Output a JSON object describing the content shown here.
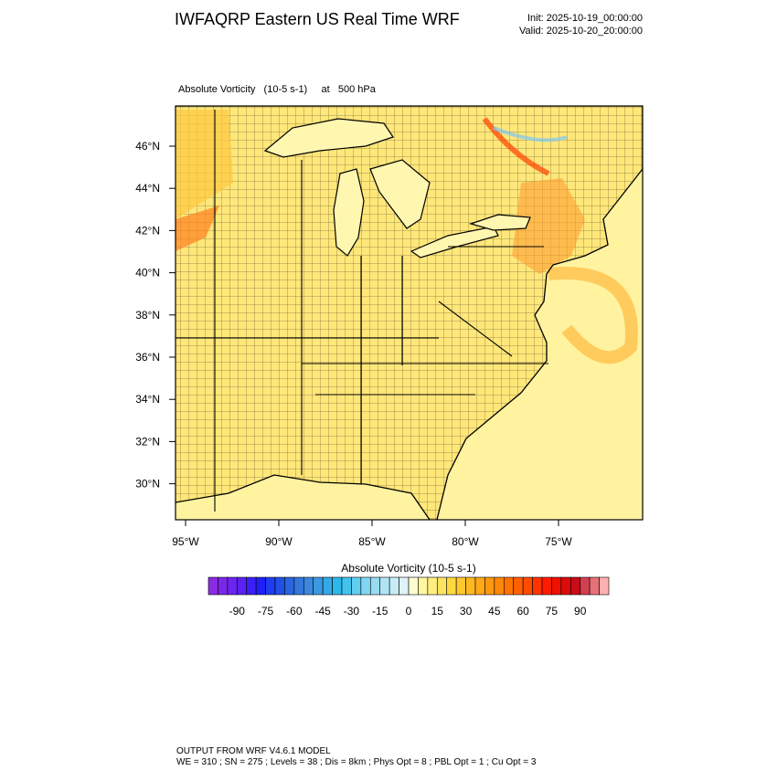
{
  "header": {
    "title": "IWFAQRP Eastern US Real Time WRF",
    "init": "Init: 2025-10-19_00:00:00",
    "valid": "Valid: 2025-10-20_20:00:00"
  },
  "plot": {
    "field_label": "Absolute Vorticity   (10-5 s-1)     at   500 hPa",
    "lat_labels": [
      "46°N",
      "44°N",
      "42°N",
      "40°N",
      "38°N",
      "36°N",
      "34°N",
      "32°N",
      "30°N"
    ],
    "lon_labels": [
      "95°W",
      "90°W",
      "85°W",
      "80°W",
      "75°W"
    ]
  },
  "colorbar": {
    "title": "Absolute Vorticity  (10-5 s-1)",
    "labels": [
      -90,
      -75,
      -60,
      -45,
      -30,
      -15,
      0,
      15,
      30,
      45,
      60,
      75,
      90
    ],
    "colors": [
      "#8a2be2",
      "#7a28e8",
      "#6a25ee",
      "#5a22f2",
      "#3a1ff6",
      "#1f1ff8",
      "#1f3cf0",
      "#2050e6",
      "#2a64e0",
      "#3478dc",
      "#3c88dc",
      "#3c98e0",
      "#34a8e8",
      "#2cb8ec",
      "#40c4ee",
      "#60cef0",
      "#80d6f2",
      "#98dcf2",
      "#b0e4f4",
      "#c8ecf6",
      "#e0f4f8",
      "#fffbd0",
      "#fff6a0",
      "#ffee80",
      "#ffe460",
      "#ffd840",
      "#ffc830",
      "#ffb820",
      "#ffa818",
      "#ff9810",
      "#ff8808",
      "#ff7400",
      "#ff6000",
      "#ff4c00",
      "#ff3400",
      "#ff1c00",
      "#f01000",
      "#dc0c0c",
      "#c80c18",
      "#d04050",
      "#e87078",
      "#ffb0b0"
    ]
  },
  "footer": {
    "lines": [
      "OUTPUT FROM WRF V4.6.1 MODEL",
      "WE = 310 ; SN = 275 ; Levels = 38 ; Dis = 8km ; Phys Opt = 8 ; PBL Opt = 1 ; Cu Opt = 3"
    ]
  }
}
